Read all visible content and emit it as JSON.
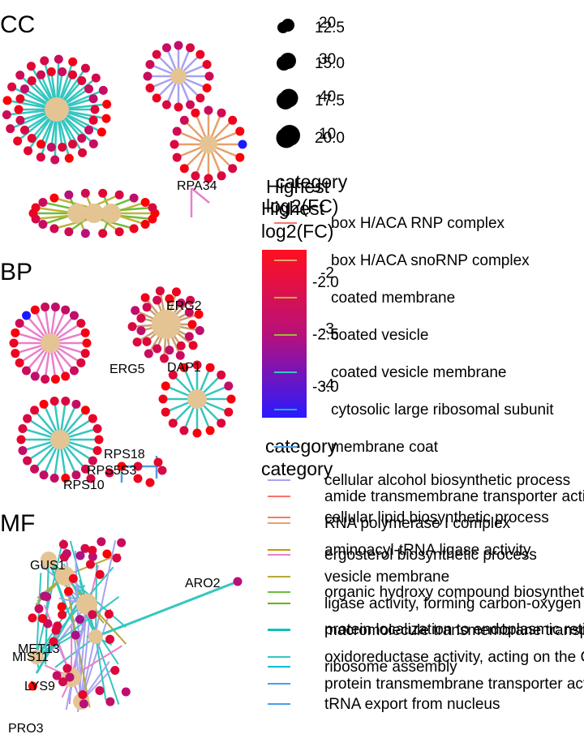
{
  "chart_data": {
    "type": "network",
    "panels": [
      {
        "label": "CC",
        "gene_labels": [
          "RPA34"
        ],
        "categories": [
          "box H/ACA RNP complex",
          "box H/ACA snoRNP complex",
          "coated membrane",
          "coated vesicle",
          "coated vesicle membrane",
          "cytosolic large ribosomal subunit",
          "membrane coat"
        ]
      },
      {
        "label": "BP",
        "gene_labels": [
          "ERG2",
          "ERG5",
          "DAP1",
          "RPS18",
          "RPS5S3",
          "RPS10"
        ],
        "categories": [
          "cellular alcohol biosynthetic process",
          "cellular lipid biosynthetic process",
          "ergosterol biosynthetic process",
          "organic hydroxy compound biosynthetic process",
          "protein localization to endoplasmic reticulum",
          "ribosome assembly",
          "tRNA export from nucleus"
        ]
      },
      {
        "label": "MF",
        "gene_labels": [
          "GUS1",
          "ARO2",
          "MET13",
          "MIS11",
          "LYS9",
          "PRO3"
        ],
        "categories": [
          "amide transmembrane transporter activity",
          "RNA polymerase I complex",
          "aminoacyl-tRNA ligase activity",
          "vesicle membrane",
          "ligase activity, forming carbon-oxygen bonds",
          "macromolecule transmembrane transporter activity",
          "oxidoreductase activity, acting on the CH-NH group of donors",
          "protein transmembrane transporter activity"
        ]
      }
    ],
    "size_legend": {
      "labels_a": [
        "12.5",
        "15.0",
        "17.5",
        "20.0"
      ],
      "labels_b": [
        "20",
        "30",
        "40",
        "10"
      ]
    },
    "color_legends": [
      {
        "title": "Highest log2(FC)",
        "ticks": [
          "-2",
          "-3",
          "-4"
        ],
        "range": [
          -4.6,
          -1.6
        ]
      },
      {
        "title": "Highest log2(FC)",
        "ticks": [
          "-2.0",
          "-2.5",
          "-3.0"
        ],
        "range": [
          -3.3,
          -1.7
        ]
      }
    ],
    "category_legend_titles": [
      "category",
      "category",
      "category"
    ],
    "category_colors": [
      "#f8766d",
      "#e58700",
      "#c99800",
      "#a3a500",
      "#6bb100",
      "#00ba38",
      "#00c0af",
      "#00bcd8",
      "#619cff",
      "#b983ff",
      "#e76bf3",
      "#fd61d1"
    ],
    "node_color_low": "#1a1aff",
    "node_color_high": "#ff0000",
    "category_node_color": "#e5c494"
  }
}
